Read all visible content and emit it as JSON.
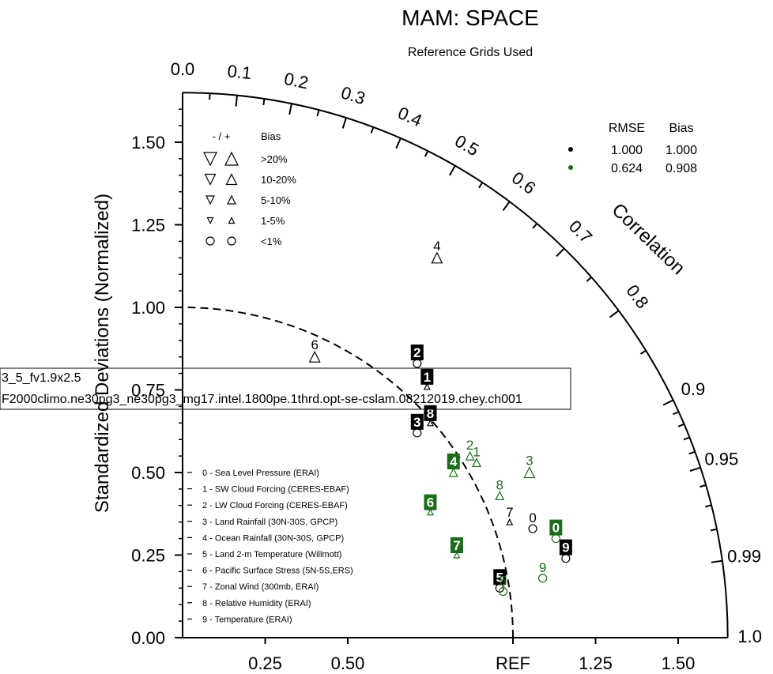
{
  "chart_data": {
    "type": "scatter",
    "subtype": "taylor-diagram",
    "title": "MAM: SPACE",
    "subtitle": "Reference Grids Used",
    "ylabel": "Standardized Deviations (Normalized)",
    "arc_label": "Correlation",
    "ref_label": "REF",
    "xlim": [
      0,
      1.65
    ],
    "ylim": [
      0,
      1.65
    ],
    "x_ticks": [
      "0.25",
      "0.50",
      "REF",
      "1.25",
      "1.50"
    ],
    "x_tick_values": [
      0.25,
      0.5,
      1.0,
      1.25,
      1.5
    ],
    "y_ticks": [
      "0.00",
      "0.25",
      "0.50",
      "0.75",
      "1.00",
      "1.25",
      "1.50"
    ],
    "y_tick_values": [
      0,
      0.25,
      0.5,
      0.75,
      1.0,
      1.25,
      1.5
    ],
    "corr_labels": [
      "0.0",
      "0.1",
      "0.2",
      "0.3",
      "0.4",
      "0.5",
      "0.6",
      "0.7",
      "0.8",
      "0.9",
      "0.95",
      "0.99",
      "1.0"
    ],
    "corr_values": [
      0.0,
      0.1,
      0.2,
      0.3,
      0.4,
      0.5,
      0.6,
      0.7,
      0.8,
      0.9,
      0.95,
      0.99,
      1.0
    ],
    "bias_legend": {
      "header_sign": "- / +",
      "header_bias": "Bias",
      "rows": [
        {
          "label": ">20%",
          "size": 16
        },
        {
          "label": "10-20%",
          "size": 13
        },
        {
          "label": "5-10%",
          "size": 10
        },
        {
          "label": "1-5%",
          "size": 7
        },
        {
          "label": "<1%",
          "size": 0
        }
      ]
    },
    "case_legend": {
      "headers": [
        "RMSE",
        "Bias"
      ],
      "rows": [
        {
          "color": "#000000",
          "rmse": "1.000",
          "bias": "1.000"
        },
        {
          "color": "#1a6e1a",
          "rmse": "0.624",
          "bias": "0.908"
        }
      ]
    },
    "variables": [
      "0 - Sea Level Pressure (ERAI)",
      "1 - SW Cloud Forcing (CERES-EBAF)",
      "2 - LW Cloud Forcing (CERES-EBAF)",
      "3 - Land Rainfall (30N-30S, GPCP)",
      "4 - Ocean Rainfall (30N-30S, GPCP)",
      "5 - Land 2-m Temperature (Willmott)",
      "6 - Pacific Surface Stress (5N-5S,ERS)",
      "7 - Zonal Wind (300mb, ERAI)",
      "8 - Relative Humidity (ERAI)",
      "9 - Temperature (ERAI)"
    ],
    "series": [
      {
        "color": "#000000",
        "points": [
          {
            "id": "0",
            "x": 1.06,
            "y": 0.33,
            "marker": "circle",
            "label_style": "plain"
          },
          {
            "id": "1",
            "x": 0.74,
            "y": 0.76,
            "marker": "up",
            "size": 7,
            "label_style": "boxed"
          },
          {
            "id": "2",
            "x": 0.71,
            "y": 0.83,
            "marker": "circle",
            "label_style": "boxed"
          },
          {
            "id": "3",
            "x": 0.71,
            "y": 0.62,
            "marker": "circle",
            "label_style": "boxed"
          },
          {
            "id": "4",
            "x": 0.77,
            "y": 1.15,
            "marker": "up",
            "size": 13,
            "label_style": "plain"
          },
          {
            "id": "5",
            "x": 0.96,
            "y": 0.15,
            "marker": "circle",
            "label_style": "boxed"
          },
          {
            "id": "6",
            "x": 0.4,
            "y": 0.85,
            "marker": "up",
            "size": 13,
            "label_style": "plain"
          },
          {
            "id": "7",
            "x": 0.99,
            "y": 0.35,
            "marker": "up",
            "size": 7,
            "label_style": "plain"
          },
          {
            "id": "8",
            "x": 0.75,
            "y": 0.65,
            "marker": "up",
            "size": 7,
            "label_style": "boxed"
          },
          {
            "id": "9",
            "x": 1.16,
            "y": 0.24,
            "marker": "circle",
            "label_style": "boxed"
          }
        ]
      },
      {
        "color": "#1a6e1a",
        "points": [
          {
            "id": "0",
            "x": 1.13,
            "y": 0.3,
            "marker": "circle",
            "label_style": "boxed"
          },
          {
            "id": "1",
            "x": 0.89,
            "y": 0.53,
            "marker": "up",
            "size": 10,
            "label_style": "plain"
          },
          {
            "id": "2",
            "x": 0.87,
            "y": 0.55,
            "marker": "up",
            "size": 10,
            "label_style": "plain"
          },
          {
            "id": "3",
            "x": 1.05,
            "y": 0.5,
            "marker": "up",
            "size": 13,
            "label_style": "plain"
          },
          {
            "id": "4",
            "x": 0.82,
            "y": 0.5,
            "marker": "up",
            "size": 10,
            "label_style": "boxed"
          },
          {
            "id": "5",
            "x": 0.97,
            "y": 0.14,
            "marker": "circle",
            "label_style": "plain"
          },
          {
            "id": "6",
            "x": 0.75,
            "y": 0.38,
            "marker": "up",
            "size": 7,
            "label_style": "boxed"
          },
          {
            "id": "7",
            "x": 0.83,
            "y": 0.25,
            "marker": "up",
            "size": 7,
            "label_style": "boxed"
          },
          {
            "id": "8",
            "x": 0.96,
            "y": 0.43,
            "marker": "up",
            "size": 10,
            "label_style": "plain"
          },
          {
            "id": "9",
            "x": 1.09,
            "y": 0.18,
            "marker": "circle",
            "label_style": "plain"
          }
        ]
      }
    ],
    "overlay_text": [
      "3_5_fv1.9x2.5",
      "F2000climo.ne30pg3_ne30pg3_mg17.intel.1800pe.1thrd.opt-se-cslam.08212019.chey.ch001"
    ]
  }
}
